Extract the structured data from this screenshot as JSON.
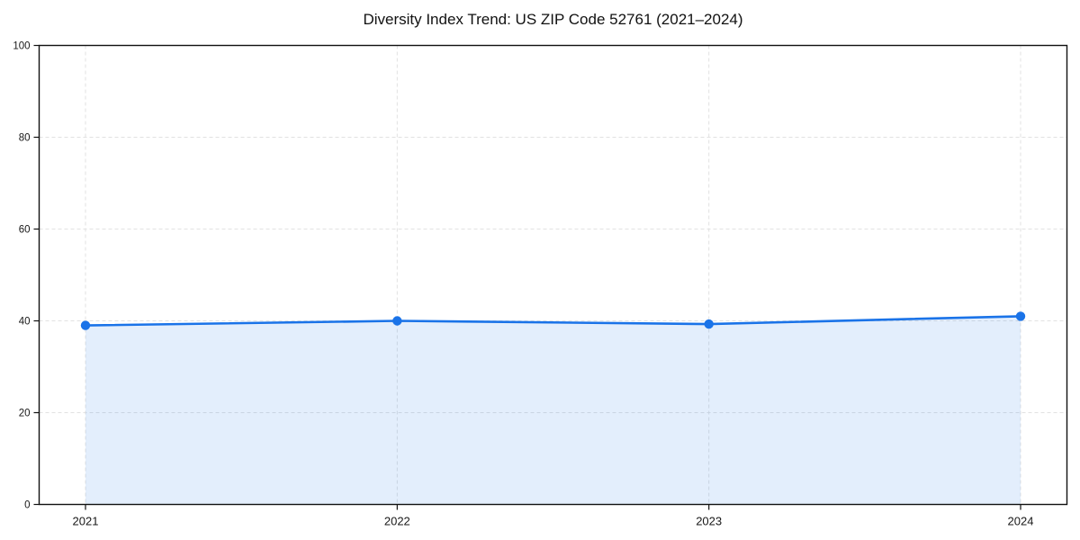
{
  "chart_data": {
    "type": "line",
    "title": "Diversity Index Trend: US ZIP Code 52761 (2021–2024)",
    "categories": [
      "2021",
      "2022",
      "2023",
      "2024"
    ],
    "series": [
      {
        "name": "Diversity Index",
        "values": [
          39,
          40,
          39.3,
          41
        ]
      }
    ],
    "xlabel": "",
    "ylabel": "",
    "ylim": [
      0,
      100
    ],
    "yticks": [
      0,
      20,
      40,
      60,
      80,
      100
    ],
    "grid": "dashed-both-axes",
    "legend": "none",
    "area_fill": true,
    "marker": "circle",
    "colors": {
      "line": "#1a73e8",
      "area": "#1a73e8",
      "area_opacity": 0.12,
      "grid": "#e2e2e2",
      "spine": "#111111",
      "tick": "#111111",
      "text": "#181818",
      "background": "#ffffff"
    }
  }
}
